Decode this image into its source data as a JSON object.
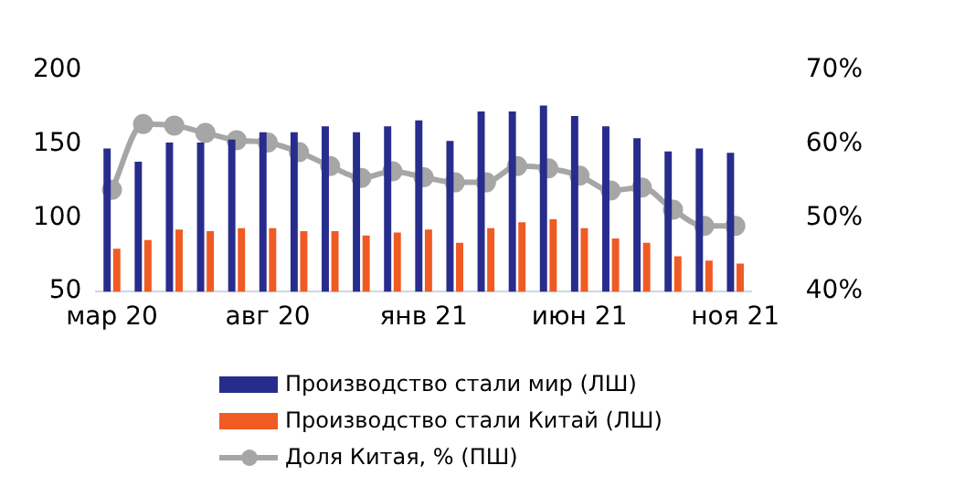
{
  "chart_data": {
    "type": "bar",
    "categories": [
      "мар 20",
      null,
      null,
      null,
      null,
      "авг 20",
      null,
      null,
      null,
      null,
      "янв 21",
      null,
      null,
      null,
      null,
      "июн 21",
      null,
      null,
      null,
      null,
      "ноя 21"
    ],
    "series": [
      {
        "name": "Производство стали мир (ЛШ)",
        "color": "#282c8c",
        "values": [
          147,
          138,
          151,
          151,
          153,
          158,
          158,
          162,
          158,
          162,
          166,
          152,
          172,
          172,
          176,
          169,
          162,
          154,
          145,
          147,
          144
        ]
      },
      {
        "name": "Производство стали Китай (ЛШ)",
        "color": "#f05a23",
        "values": [
          79,
          85,
          92,
          91,
          93,
          93,
          91,
          91,
          88,
          90,
          92,
          83,
          93,
          97,
          99,
          93,
          86,
          83,
          74,
          71,
          69
        ]
      },
      {
        "name": "Доля Китая, % (ПШ)",
        "type": "line",
        "axis": "y2",
        "color": "#a6a6a6",
        "values": [
          53.8,
          62.7,
          62.5,
          61.5,
          60.5,
          60.2,
          58.9,
          57.0,
          55.4,
          56.3,
          55.5,
          54.8,
          54.8,
          57.0,
          56.7,
          55.7,
          53.7,
          54.1,
          51.1,
          48.9,
          48.9
        ]
      }
    ],
    "ylim": [
      50,
      200
    ],
    "yticks": [
      50,
      100,
      150,
      200
    ],
    "y2lim": [
      40,
      70
    ],
    "y2ticks": [
      {
        "value": 40,
        "label": "40%"
      },
      {
        "value": 50,
        "label": "50%"
      },
      {
        "value": 60,
        "label": "60%"
      },
      {
        "value": 70,
        "label": "70%"
      }
    ],
    "marker": "circle",
    "grid": false,
    "legend": "bottom"
  }
}
